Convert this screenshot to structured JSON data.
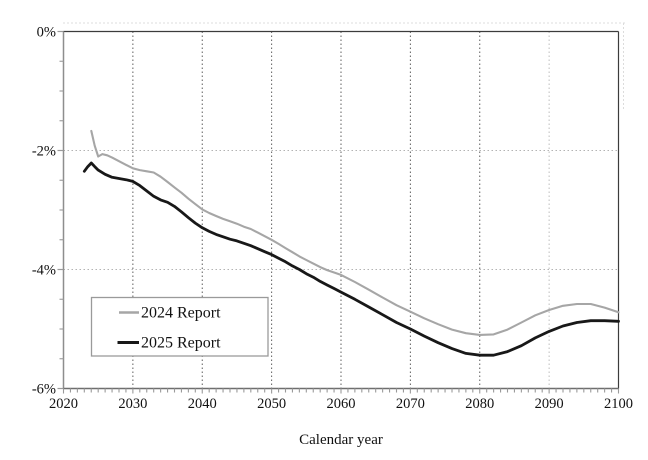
{
  "chart_data": {
    "type": "line",
    "title": "",
    "xlabel": "Calendar year",
    "ylabel": "",
    "xlim": [
      2020,
      2100
    ],
    "ylim": [
      -6,
      0
    ],
    "x_ticks": [
      2020,
      2030,
      2040,
      2050,
      2060,
      2070,
      2080,
      2090,
      2100
    ],
    "x_tick_labels": [
      "2020",
      "2030",
      "2040",
      "2050",
      "2060",
      "2070",
      "2080",
      "2090",
      "2100"
    ],
    "x_minor_tick_step_years": 1,
    "y_ticks": [
      0,
      -2,
      -4,
      -6
    ],
    "y_tick_labels": [
      "0%",
      "-2%",
      "-4%",
      "-6%"
    ],
    "y_minor_tick_step": 0.5,
    "grid": {
      "vertical_years": [
        2030,
        2040,
        2050,
        2060,
        2070,
        2080,
        2090
      ],
      "vertical_color": "#5f5f5f",
      "vertical_light_years": [
        2090
      ],
      "vertical_light_color": "#bdbdbd",
      "horizontal_values": [
        -2,
        -4
      ],
      "horizontal_color": "#b3b3b3",
      "line_style": "dotted"
    },
    "legend_position": "inside-lower-left",
    "series": [
      {
        "name": "2024 Report",
        "color": "#a6a6a6",
        "width": 2.1,
        "points": [
          [
            2024,
            -1.67
          ],
          [
            2024.5,
            -1.92
          ],
          [
            2025,
            -2.1
          ],
          [
            2025.6,
            -2.06
          ],
          [
            2026.3,
            -2.08
          ],
          [
            2027,
            -2.12
          ],
          [
            2028,
            -2.18
          ],
          [
            2029,
            -2.24
          ],
          [
            2030,
            -2.3
          ],
          [
            2031,
            -2.33
          ],
          [
            2032,
            -2.35
          ],
          [
            2033,
            -2.37
          ],
          [
            2034,
            -2.44
          ],
          [
            2035,
            -2.53
          ],
          [
            2036,
            -2.62
          ],
          [
            2037,
            -2.71
          ],
          [
            2038,
            -2.81
          ],
          [
            2039,
            -2.9
          ],
          [
            2040,
            -2.99
          ],
          [
            2041,
            -3.05
          ],
          [
            2042,
            -3.1
          ],
          [
            2043,
            -3.15
          ],
          [
            2044,
            -3.19
          ],
          [
            2045,
            -3.23
          ],
          [
            2046,
            -3.28
          ],
          [
            2047,
            -3.32
          ],
          [
            2048,
            -3.38
          ],
          [
            2049,
            -3.44
          ],
          [
            2050,
            -3.5
          ],
          [
            2051,
            -3.57
          ],
          [
            2052,
            -3.64
          ],
          [
            2053,
            -3.71
          ],
          [
            2054,
            -3.78
          ],
          [
            2055,
            -3.84
          ],
          [
            2056,
            -3.9
          ],
          [
            2057,
            -3.96
          ],
          [
            2058,
            -4.01
          ],
          [
            2059,
            -4.05
          ],
          [
            2060,
            -4.09
          ],
          [
            2062,
            -4.21
          ],
          [
            2064,
            -4.34
          ],
          [
            2066,
            -4.47
          ],
          [
            2068,
            -4.6
          ],
          [
            2070,
            -4.71
          ],
          [
            2072,
            -4.82
          ],
          [
            2074,
            -4.92
          ],
          [
            2076,
            -5.01
          ],
          [
            2078,
            -5.07
          ],
          [
            2080,
            -5.1
          ],
          [
            2082,
            -5.09
          ],
          [
            2084,
            -5.01
          ],
          [
            2086,
            -4.89
          ],
          [
            2088,
            -4.77
          ],
          [
            2090,
            -4.68
          ],
          [
            2092,
            -4.61
          ],
          [
            2094,
            -4.58
          ],
          [
            2096,
            -4.58
          ],
          [
            2098,
            -4.64
          ],
          [
            2100,
            -4.72
          ]
        ]
      },
      {
        "name": "2025 Report",
        "color": "#181818",
        "width": 2.8,
        "points": [
          [
            2023,
            -2.35
          ],
          [
            2023.5,
            -2.27
          ],
          [
            2024,
            -2.21
          ],
          [
            2024.5,
            -2.27
          ],
          [
            2025,
            -2.33
          ],
          [
            2026,
            -2.4
          ],
          [
            2027,
            -2.45
          ],
          [
            2028,
            -2.47
          ],
          [
            2029,
            -2.49
          ],
          [
            2030,
            -2.52
          ],
          [
            2031,
            -2.59
          ],
          [
            2032,
            -2.68
          ],
          [
            2033,
            -2.77
          ],
          [
            2034,
            -2.83
          ],
          [
            2035,
            -2.87
          ],
          [
            2036,
            -2.94
          ],
          [
            2037,
            -3.03
          ],
          [
            2038,
            -3.13
          ],
          [
            2039,
            -3.22
          ],
          [
            2040,
            -3.3
          ],
          [
            2041,
            -3.36
          ],
          [
            2042,
            -3.41
          ],
          [
            2043,
            -3.45
          ],
          [
            2044,
            -3.49
          ],
          [
            2045,
            -3.52
          ],
          [
            2046,
            -3.56
          ],
          [
            2047,
            -3.6
          ],
          [
            2048,
            -3.65
          ],
          [
            2049,
            -3.7
          ],
          [
            2050,
            -3.75
          ],
          [
            2051,
            -3.81
          ],
          [
            2052,
            -3.87
          ],
          [
            2053,
            -3.94
          ],
          [
            2054,
            -4.0
          ],
          [
            2055,
            -4.07
          ],
          [
            2056,
            -4.13
          ],
          [
            2057,
            -4.2
          ],
          [
            2058,
            -4.26
          ],
          [
            2059,
            -4.32
          ],
          [
            2060,
            -4.38
          ],
          [
            2062,
            -4.5
          ],
          [
            2064,
            -4.63
          ],
          [
            2066,
            -4.76
          ],
          [
            2068,
            -4.89
          ],
          [
            2070,
            -5.0
          ],
          [
            2072,
            -5.12
          ],
          [
            2074,
            -5.23
          ],
          [
            2076,
            -5.33
          ],
          [
            2078,
            -5.41
          ],
          [
            2080,
            -5.44
          ],
          [
            2082,
            -5.44
          ],
          [
            2084,
            -5.38
          ],
          [
            2086,
            -5.28
          ],
          [
            2088,
            -5.15
          ],
          [
            2090,
            -5.04
          ],
          [
            2092,
            -4.95
          ],
          [
            2094,
            -4.89
          ],
          [
            2096,
            -4.86
          ],
          [
            2098,
            -4.86
          ],
          [
            2100,
            -4.87
          ]
        ]
      }
    ],
    "colors": {
      "spine_top_right": "#3c3c3c",
      "spine_left": "#8e8e8e",
      "spine_bottom": "#6e6e6e",
      "tick": "#9a9a9a",
      "outer_border": "#dcdcdc"
    }
  },
  "legend": {
    "items": [
      {
        "label": "2024 Report"
      },
      {
        "label": "2025 Report"
      }
    ]
  }
}
